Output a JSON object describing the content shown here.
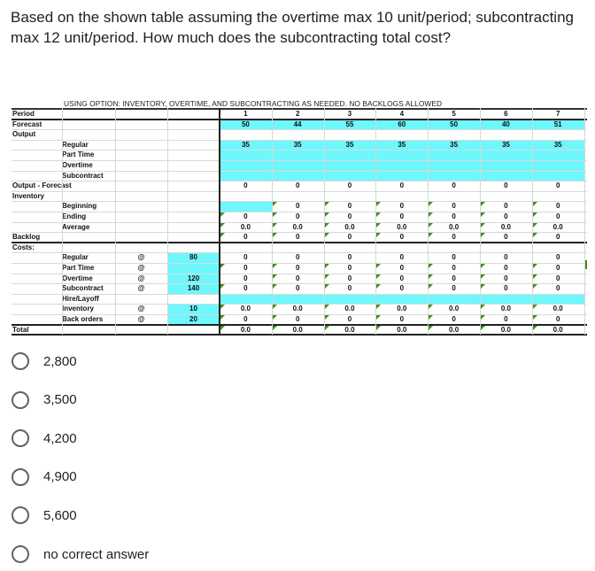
{
  "question": {
    "text": "Based on the shown table assuming the overtime max 10 unit/period; subcontracting max 12 unit/period. How much does the subcontracting total cost?"
  },
  "spreadsheet": {
    "caption": "USING OPTION: INVENTORY, OVERTIME, AND SUBCONTRACTING AS NEEDED. NO BACKLOGS ALLOWED",
    "periods": [
      "1",
      "2",
      "3",
      "4",
      "5",
      "6",
      "7"
    ],
    "rows": [
      {
        "label": "Period",
        "sub": "",
        "at": "",
        "rate": "",
        "values": [
          "1",
          "2",
          "3",
          "4",
          "5",
          "6",
          "7"
        ],
        "thick_bottom": true
      },
      {
        "label": "Forecast",
        "sub": "",
        "at": "",
        "rate": "",
        "values": [
          "50",
          "44",
          "55",
          "60",
          "50",
          "40",
          "51"
        ]
      },
      {
        "label": "Output",
        "sub": "",
        "at": "",
        "rate": "",
        "values": [
          "",
          "",
          "",
          "",
          "",
          "",
          ""
        ]
      },
      {
        "label": "",
        "sub": "Regular",
        "at": "",
        "rate": "",
        "values": [
          "35",
          "35",
          "35",
          "35",
          "35",
          "35",
          "35"
        ]
      },
      {
        "label": "",
        "sub": "Part Time",
        "at": "",
        "rate": "",
        "values": [
          "",
          "",
          "",
          "",
          "",
          "",
          ""
        ]
      },
      {
        "label": "",
        "sub": "Overtime",
        "at": "",
        "rate": "",
        "values": [
          "",
          "",
          "",
          "",
          "",
          "",
          ""
        ]
      },
      {
        "label": "",
        "sub": "Subcontract",
        "at": "",
        "rate": "",
        "values": [
          "",
          "",
          "",
          "",
          "",
          "",
          ""
        ]
      },
      {
        "label": "Output - Forecast",
        "sub": "",
        "at": "",
        "rate": "",
        "values": [
          "0",
          "0",
          "0",
          "0",
          "0",
          "0",
          "0"
        ]
      },
      {
        "label": "Inventory",
        "sub": "",
        "at": "",
        "rate": "",
        "values": [
          "",
          "",
          "",
          "",
          "",
          "",
          ""
        ]
      },
      {
        "label": "",
        "sub": "Beginning",
        "at": "",
        "rate": "",
        "values": [
          "",
          "0",
          "0",
          "0",
          "0",
          "0",
          "0"
        ]
      },
      {
        "label": "",
        "sub": "Ending",
        "at": "",
        "rate": "",
        "values": [
          "0",
          "0",
          "0",
          "0",
          "0",
          "0",
          "0"
        ]
      },
      {
        "label": "",
        "sub": "Average",
        "at": "",
        "rate": "",
        "values": [
          "0.0",
          "0.0",
          "0.0",
          "0.0",
          "0.0",
          "0.0",
          "0.0"
        ]
      },
      {
        "label": "Backlog",
        "sub": "",
        "at": "",
        "rate": "",
        "values": [
          "0",
          "0",
          "0",
          "0",
          "0",
          "0",
          "0"
        ],
        "thick_bottom": true
      },
      {
        "label": "Costs:",
        "sub": "",
        "at": "",
        "rate": "",
        "values": [
          "",
          "",
          "",
          "",
          "",
          "",
          ""
        ]
      },
      {
        "label": "",
        "sub": "Regular",
        "at": "@",
        "rate": "80",
        "values": [
          "0",
          "0",
          "0",
          "0",
          "0",
          "0",
          "0"
        ]
      },
      {
        "label": "",
        "sub": "Part Time",
        "at": "@",
        "rate": "",
        "values": [
          "0",
          "0",
          "0",
          "0",
          "0",
          "0",
          "0"
        ]
      },
      {
        "label": "",
        "sub": "Overtime",
        "at": "@",
        "rate": "120",
        "values": [
          "0",
          "0",
          "0",
          "0",
          "0",
          "0",
          "0"
        ]
      },
      {
        "label": "",
        "sub": "Subcontract",
        "at": "@",
        "rate": "140",
        "values": [
          "0",
          "0",
          "0",
          "0",
          "0",
          "0",
          "0"
        ]
      },
      {
        "label": "",
        "sub": "Hire/Layoff",
        "at": "",
        "rate": "",
        "values": [
          "",
          "",
          "",
          "",
          "",
          "",
          ""
        ]
      },
      {
        "label": "",
        "sub": "Inventory",
        "at": "@",
        "rate": "10",
        "values": [
          "0.0",
          "0.0",
          "0.0",
          "0.0",
          "0.0",
          "0.0",
          "0.0"
        ]
      },
      {
        "label": "",
        "sub": "Back orders",
        "at": "@",
        "rate": "20",
        "values": [
          "0",
          "0",
          "0",
          "0",
          "0",
          "0",
          "0"
        ],
        "thick_bottom": true
      },
      {
        "label": "Total",
        "sub": "",
        "at": "",
        "rate": "",
        "values": [
          "0.0",
          "0.0",
          "0.0",
          "0.0",
          "0.0",
          "0.0",
          "0.0"
        ],
        "thick_bottom": true
      }
    ],
    "colors": {
      "highlight": "#6ef7fc",
      "comment_marker": "#3e8e1f",
      "grid": "#d9d9d9",
      "border": "#222222"
    }
  },
  "options": [
    {
      "label": "2,800"
    },
    {
      "label": "3,500"
    },
    {
      "label": "4,200"
    },
    {
      "label": "4,900"
    },
    {
      "label": "5,600"
    },
    {
      "label": "no correct answer"
    }
  ]
}
